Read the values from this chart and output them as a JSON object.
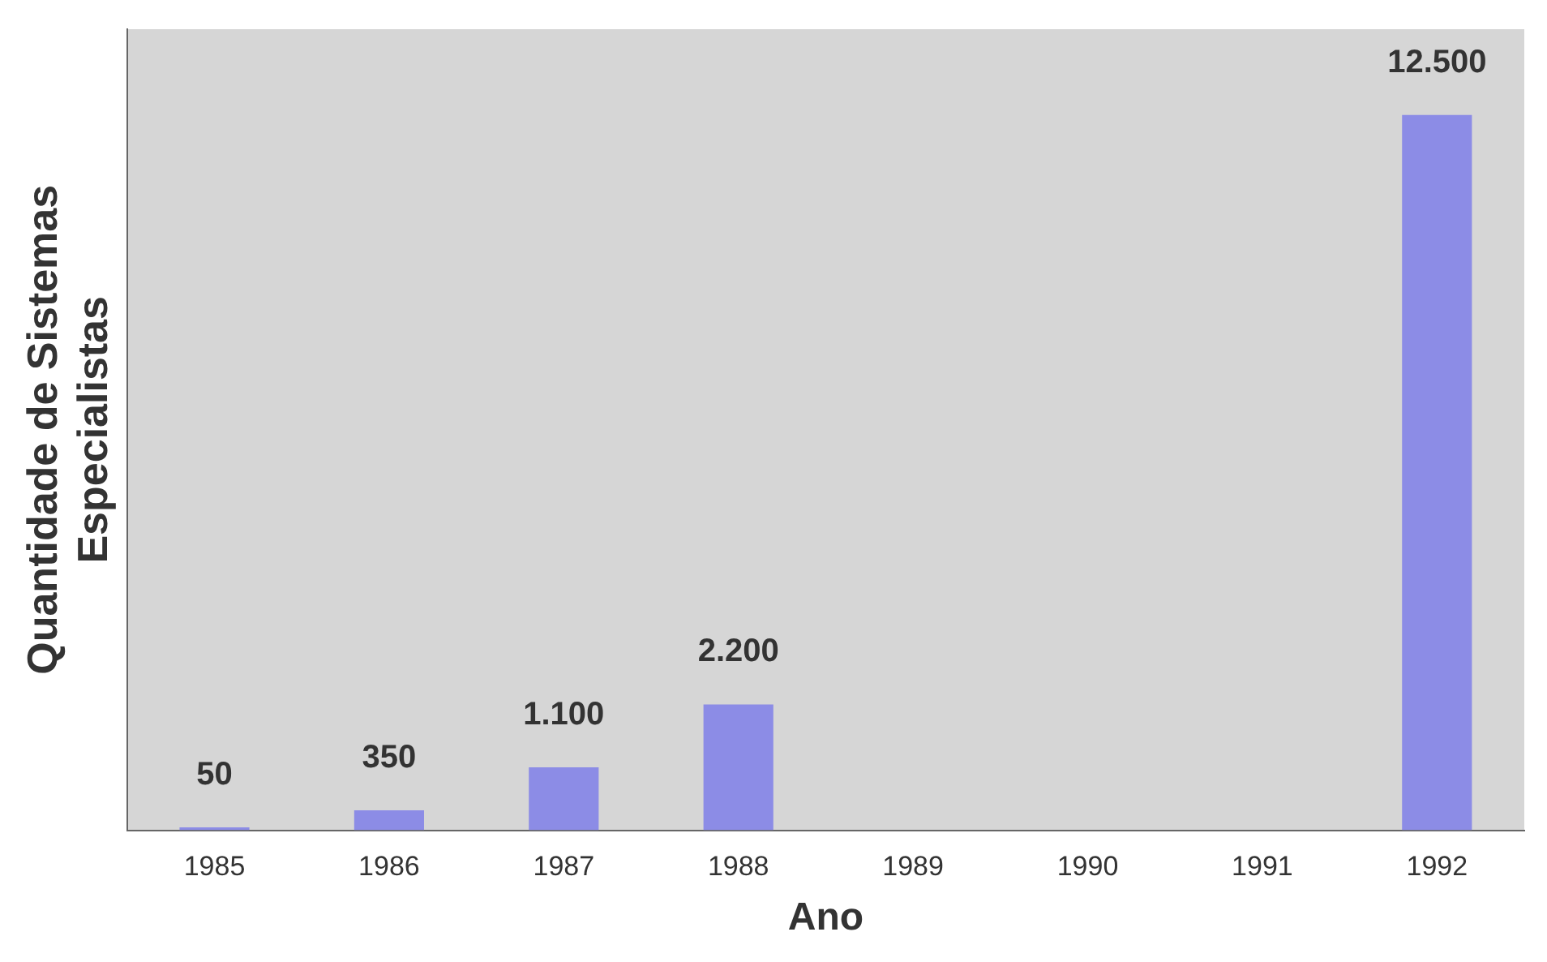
{
  "chart_data": {
    "type": "bar",
    "xlabel": "Ano",
    "ylabel": "Quantidade de Sistemas\nEspecialistas",
    "categories": [
      "1985",
      "1986",
      "1987",
      "1988",
      "1989",
      "1990",
      "1991",
      "1992"
    ],
    "values": [
      50,
      350,
      1100,
      2200,
      null,
      null,
      null,
      12500
    ],
    "value_labels": [
      "50",
      "350",
      "1.100",
      "2.200",
      null,
      null,
      null,
      "12.500"
    ],
    "color": "#8c8ce6",
    "tick_labels": "x",
    "legend": false
  }
}
